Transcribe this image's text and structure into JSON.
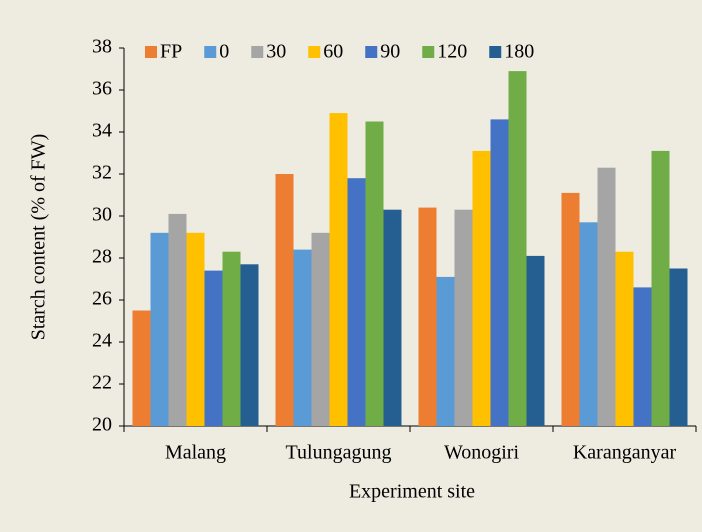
{
  "chart_data": {
    "type": "bar",
    "x_label": "Experiment site",
    "y_label": "Starch content (% of FW)",
    "categories": [
      "Malang",
      "Tulungagung",
      "Wonogiri",
      "Karanganyar"
    ],
    "series": [
      {
        "name": "FP",
        "color": "#ed7d31",
        "values": [
          25.5,
          32.0,
          30.4,
          31.1
        ]
      },
      {
        "name": "0",
        "color": "#5b9bd5",
        "values": [
          29.2,
          28.4,
          27.1,
          29.7
        ]
      },
      {
        "name": "30",
        "color": "#a5a5a5",
        "values": [
          30.1,
          29.2,
          30.3,
          32.3
        ]
      },
      {
        "name": "60",
        "color": "#ffc000",
        "values": [
          29.2,
          34.9,
          33.1,
          28.3
        ]
      },
      {
        "name": "90",
        "color": "#4472c4",
        "values": [
          27.4,
          31.8,
          34.6,
          26.6
        ]
      },
      {
        "name": "120",
        "color": "#70ad47",
        "values": [
          28.3,
          34.5,
          36.9,
          33.1
        ]
      },
      {
        "name": "180",
        "color": "#255e91",
        "values": [
          27.7,
          30.3,
          28.1,
          27.5
        ]
      }
    ],
    "ylim": [
      20,
      38
    ],
    "yticks": [
      20,
      22,
      24,
      26,
      28,
      30,
      32,
      34,
      36,
      38
    ],
    "grid": false,
    "legend": "top-left"
  }
}
